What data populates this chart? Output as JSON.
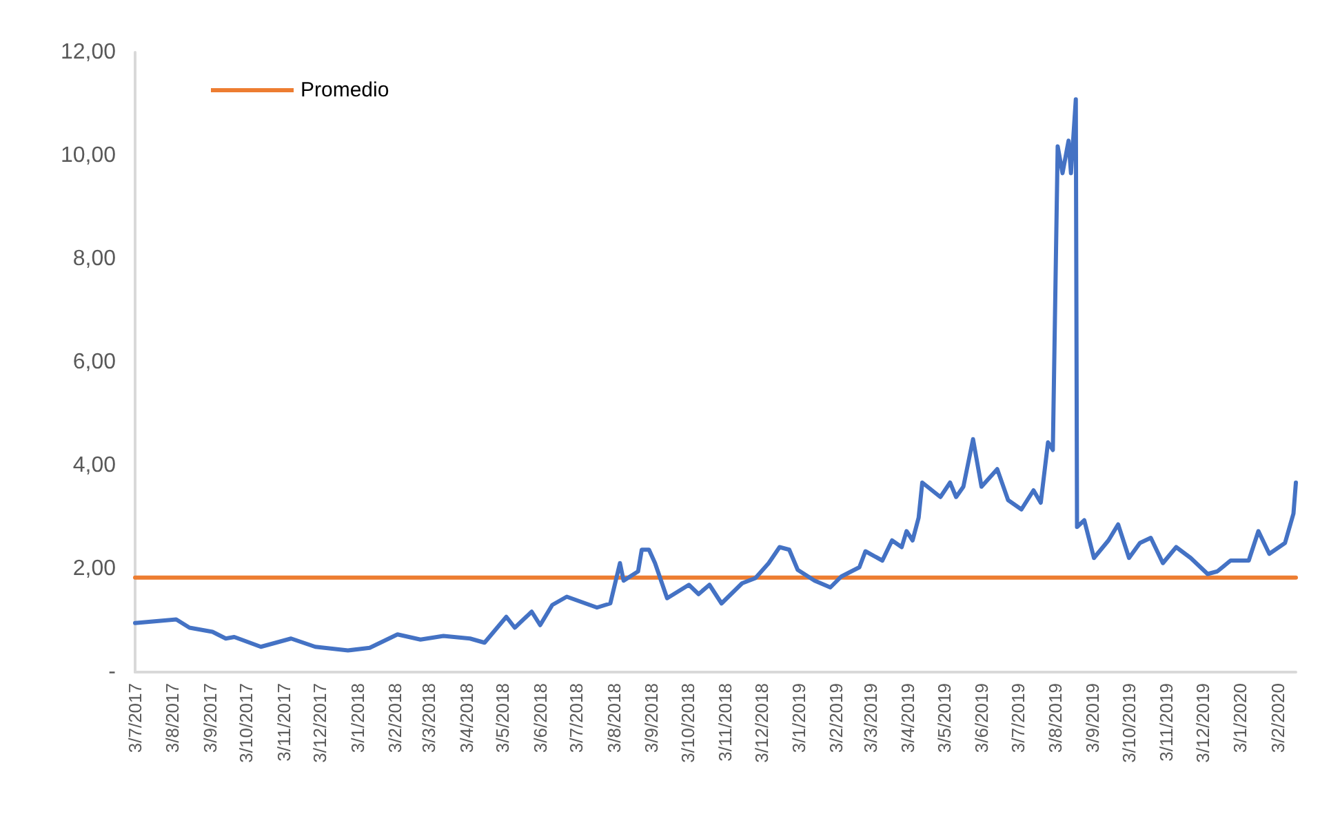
{
  "chart_data": {
    "type": "line",
    "marker": "none",
    "grid": false,
    "legend": "top left",
    "xlim": [
      "2017-07-03",
      "2020-02-18"
    ],
    "ylim": [
      0,
      12
    ],
    "yticks": [
      {
        "value": 0,
        "label": "-"
      },
      {
        "value": 2,
        "label": "2,00"
      },
      {
        "value": 4,
        "label": "4,00"
      },
      {
        "value": 6,
        "label": "6,00"
      },
      {
        "value": 8,
        "label": "8,00"
      },
      {
        "value": 10,
        "label": "10,00"
      },
      {
        "value": 12,
        "label": "12,00"
      }
    ],
    "xticks": [
      {
        "value": "2017-07-03",
        "label": "3/7/2017"
      },
      {
        "value": "2017-08-03",
        "label": "3/8/2017"
      },
      {
        "value": "2017-09-03",
        "label": "3/9/2017"
      },
      {
        "value": "2017-10-03",
        "label": "3/10/2017"
      },
      {
        "value": "2017-11-03",
        "label": "3/11/2017"
      },
      {
        "value": "2017-12-03",
        "label": "3/12/2017"
      },
      {
        "value": "2018-01-03",
        "label": "3/1/2018"
      },
      {
        "value": "2018-02-03",
        "label": "3/2/2018"
      },
      {
        "value": "2018-03-03",
        "label": "3/3/2018"
      },
      {
        "value": "2018-04-03",
        "label": "3/4/2018"
      },
      {
        "value": "2018-05-03",
        "label": "3/5/2018"
      },
      {
        "value": "2018-06-03",
        "label": "3/6/2018"
      },
      {
        "value": "2018-07-03",
        "label": "3/7/2018"
      },
      {
        "value": "2018-08-03",
        "label": "3/8/2018"
      },
      {
        "value": "2018-09-03",
        "label": "3/9/2018"
      },
      {
        "value": "2018-10-03",
        "label": "3/10/2018"
      },
      {
        "value": "2018-11-03",
        "label": "3/11/2018"
      },
      {
        "value": "2018-12-03",
        "label": "3/12/2018"
      },
      {
        "value": "2019-01-03",
        "label": "3/1/2019"
      },
      {
        "value": "2019-02-03",
        "label": "3/2/2019"
      },
      {
        "value": "2019-03-03",
        "label": "3/3/2019"
      },
      {
        "value": "2019-04-03",
        "label": "3/4/2019"
      },
      {
        "value": "2019-05-03",
        "label": "3/5/2019"
      },
      {
        "value": "2019-06-03",
        "label": "3/6/2019"
      },
      {
        "value": "2019-07-03",
        "label": "3/7/2019"
      },
      {
        "value": "2019-08-03",
        "label": "3/8/2019"
      },
      {
        "value": "2019-09-03",
        "label": "3/9/2019"
      },
      {
        "value": "2019-10-03",
        "label": "3/10/2019"
      },
      {
        "value": "2019-11-03",
        "label": "3/11/2019"
      },
      {
        "value": "2019-12-03",
        "label": "3/12/2019"
      },
      {
        "value": "2020-01-03",
        "label": "3/1/2020"
      },
      {
        "value": "2020-02-03",
        "label": "3/2/2020"
      }
    ],
    "series": [
      {
        "color": "#4472c4",
        "x": [
          "2017-07-03",
          "2017-08-06",
          "2017-08-17",
          "2017-09-05",
          "2017-09-16",
          "2017-09-23",
          "2017-10-15",
          "2017-11-09",
          "2017-11-29",
          "2017-12-26",
          "2018-01-13",
          "2018-02-05",
          "2018-02-24",
          "2018-03-15",
          "2018-04-06",
          "2018-04-18",
          "2018-05-06",
          "2018-05-13",
          "2018-05-27",
          "2018-06-03",
          "2018-06-13",
          "2018-06-25",
          "2018-07-20",
          "2018-07-31",
          "2018-08-08",
          "2018-08-11",
          "2018-08-23",
          "2018-08-26",
          "2018-09-01",
          "2018-09-06",
          "2018-09-16",
          "2018-10-04",
          "2018-10-12",
          "2018-10-21",
          "2018-10-31",
          "2018-11-17",
          "2018-11-28",
          "2018-12-09",
          "2018-12-18",
          "2018-12-26",
          "2019-01-02",
          "2019-01-16",
          "2019-01-29",
          "2019-02-07",
          "2019-02-22",
          "2019-02-27",
          "2019-03-13",
          "2019-03-21",
          "2019-03-29",
          "2019-04-02",
          "2019-04-07",
          "2019-04-12",
          "2019-04-15",
          "2019-04-30",
          "2019-05-08",
          "2019-05-13",
          "2019-05-19",
          "2019-05-27",
          "2019-06-03",
          "2019-06-16",
          "2019-06-25",
          "2019-07-06",
          "2019-07-16",
          "2019-07-22",
          "2019-07-28",
          "2019-08-01",
          "2019-08-05",
          "2019-08-09",
          "2019-08-14",
          "2019-08-16",
          "2019-08-20",
          "2019-08-21",
          "2019-08-27",
          "2019-09-04",
          "2019-09-16",
          "2019-09-24",
          "2019-10-03",
          "2019-10-12",
          "2019-10-21",
          "2019-10-31",
          "2019-11-11",
          "2019-11-23",
          "2019-12-07",
          "2019-12-15",
          "2019-12-26",
          "2020-01-10",
          "2020-01-18",
          "2020-01-27",
          "2020-02-09",
          "2020-02-16",
          "2020-02-18"
        ],
        "values": [
          0.95,
          1.02,
          0.86,
          0.78,
          0.65,
          0.68,
          0.49,
          0.65,
          0.49,
          0.42,
          0.47,
          0.73,
          0.63,
          0.7,
          0.65,
          0.57,
          1.07,
          0.86,
          1.17,
          0.91,
          1.3,
          1.46,
          1.25,
          1.33,
          2.11,
          1.77,
          1.95,
          2.37,
          2.37,
          2.11,
          1.43,
          1.69,
          1.51,
          1.69,
          1.33,
          1.72,
          1.82,
          2.11,
          2.42,
          2.37,
          1.98,
          1.77,
          1.64,
          1.85,
          2.03,
          2.34,
          2.16,
          2.55,
          2.42,
          2.73,
          2.55,
          2.99,
          3.67,
          3.39,
          3.67,
          3.39,
          3.59,
          4.51,
          3.59,
          3.93,
          3.33,
          3.15,
          3.52,
          3.28,
          4.45,
          4.3,
          10.18,
          9.66,
          10.29,
          9.66,
          11.09,
          2.81,
          2.94,
          2.21,
          2.55,
          2.86,
          2.21,
          2.5,
          2.6,
          2.11,
          2.42,
          2.21,
          1.9,
          1.95,
          2.16,
          2.16,
          2.73,
          2.29,
          2.5,
          3.07,
          3.67
        ]
      },
      {
        "name": "Promedio",
        "color": "#ed7d31",
        "x": [
          "2017-07-03",
          "2020-02-18"
        ],
        "values": [
          1.83,
          1.83
        ]
      }
    ]
  }
}
